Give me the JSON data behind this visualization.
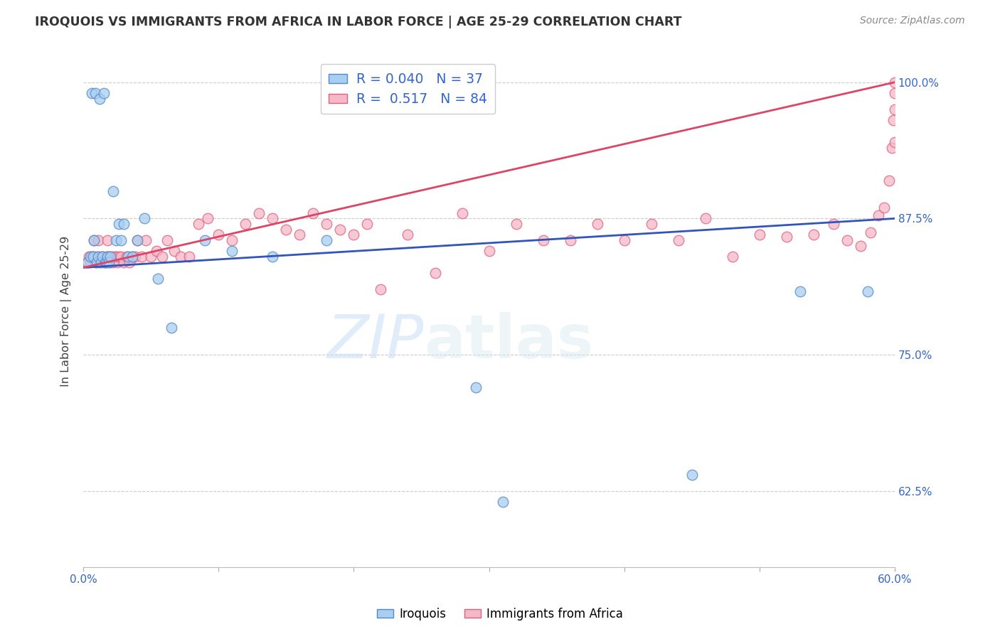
{
  "title": "IROQUOIS VS IMMIGRANTS FROM AFRICA IN LABOR FORCE | AGE 25-29 CORRELATION CHART",
  "source": "Source: ZipAtlas.com",
  "ylabel": "In Labor Force | Age 25-29",
  "legend_labels": [
    "Iroquois",
    "Immigrants from Africa"
  ],
  "r_iroquois": 0.04,
  "n_iroquois": 37,
  "r_africa": 0.517,
  "n_africa": 84,
  "xmin": 0.0,
  "xmax": 0.6,
  "ymin": 0.555,
  "ymax": 1.025,
  "yticks": [
    0.625,
    0.75,
    0.875,
    1.0
  ],
  "ytick_labels": [
    "62.5%",
    "75.0%",
    "87.5%",
    "100.0%"
  ],
  "xticks": [
    0.0,
    0.1,
    0.2,
    0.3,
    0.4,
    0.5,
    0.6
  ],
  "xtick_labels": [
    "0.0%",
    "",
    "",
    "",
    "",
    "",
    "60.0%"
  ],
  "watermark_zip": "ZIP",
  "watermark_atlas": "atlas",
  "color_iroquois": "#a8cef0",
  "color_africa": "#f5b8c8",
  "edge_color_iroquois": "#5588cc",
  "edge_color_africa": "#e06080",
  "line_color_iroquois": "#3355bb",
  "line_color_africa": "#dd4466",
  "iroquois_x": [
    0.003,
    0.005,
    0.006,
    0.007,
    0.008,
    0.009,
    0.01,
    0.011,
    0.012,
    0.013,
    0.014,
    0.015,
    0.016,
    0.017,
    0.018,
    0.019,
    0.02,
    0.022,
    0.024,
    0.026,
    0.028,
    0.03,
    0.033,
    0.036,
    0.04,
    0.045,
    0.055,
    0.065,
    0.09,
    0.11,
    0.14,
    0.18,
    0.29,
    0.31,
    0.45,
    0.53,
    0.58
  ],
  "iroquois_y": [
    0.835,
    0.84,
    0.99,
    0.84,
    0.855,
    0.99,
    0.835,
    0.84,
    0.985,
    0.835,
    0.84,
    0.99,
    0.835,
    0.835,
    0.84,
    0.835,
    0.84,
    0.9,
    0.855,
    0.87,
    0.855,
    0.87,
    0.84,
    0.84,
    0.855,
    0.875,
    0.82,
    0.775,
    0.855,
    0.845,
    0.84,
    0.855,
    0.72,
    0.615,
    0.64,
    0.808,
    0.808
  ],
  "africa_x": [
    0.003,
    0.004,
    0.005,
    0.006,
    0.007,
    0.008,
    0.009,
    0.01,
    0.011,
    0.012,
    0.013,
    0.014,
    0.015,
    0.016,
    0.017,
    0.018,
    0.019,
    0.02,
    0.021,
    0.022,
    0.023,
    0.024,
    0.025,
    0.026,
    0.028,
    0.03,
    0.032,
    0.034,
    0.036,
    0.038,
    0.04,
    0.043,
    0.046,
    0.05,
    0.054,
    0.058,
    0.062,
    0.067,
    0.072,
    0.078,
    0.085,
    0.092,
    0.1,
    0.11,
    0.12,
    0.13,
    0.14,
    0.15,
    0.16,
    0.17,
    0.18,
    0.19,
    0.2,
    0.21,
    0.22,
    0.24,
    0.26,
    0.28,
    0.3,
    0.32,
    0.34,
    0.36,
    0.38,
    0.4,
    0.42,
    0.44,
    0.46,
    0.48,
    0.5,
    0.52,
    0.54,
    0.555,
    0.565,
    0.575,
    0.582,
    0.588,
    0.592,
    0.596,
    0.598,
    0.599,
    0.6,
    0.6,
    0.6,
    0.6
  ],
  "africa_y": [
    0.835,
    0.84,
    0.835,
    0.84,
    0.84,
    0.855,
    0.835,
    0.84,
    0.855,
    0.835,
    0.84,
    0.84,
    0.835,
    0.835,
    0.84,
    0.855,
    0.84,
    0.835,
    0.84,
    0.835,
    0.84,
    0.84,
    0.835,
    0.84,
    0.84,
    0.835,
    0.84,
    0.835,
    0.84,
    0.84,
    0.855,
    0.84,
    0.855,
    0.84,
    0.845,
    0.84,
    0.855,
    0.845,
    0.84,
    0.84,
    0.87,
    0.875,
    0.86,
    0.855,
    0.87,
    0.88,
    0.875,
    0.865,
    0.86,
    0.88,
    0.87,
    0.865,
    0.86,
    0.87,
    0.81,
    0.86,
    0.825,
    0.88,
    0.845,
    0.87,
    0.855,
    0.855,
    0.87,
    0.855,
    0.87,
    0.855,
    0.875,
    0.84,
    0.86,
    0.858,
    0.86,
    0.87,
    0.855,
    0.85,
    0.862,
    0.878,
    0.885,
    0.91,
    0.94,
    0.965,
    0.945,
    0.975,
    0.99,
    1.0
  ]
}
